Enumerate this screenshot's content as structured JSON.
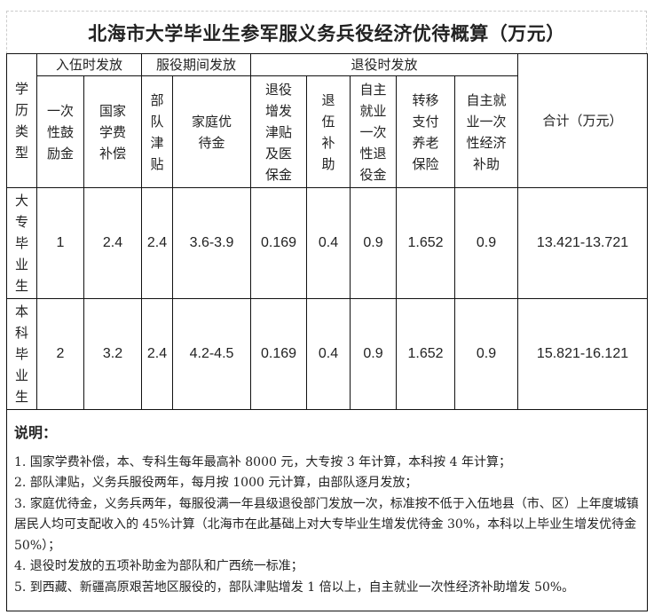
{
  "title": "北海市大学毕业生参军服义务兵役经济优待概算（万元）",
  "header": {
    "row_label": "学历类型",
    "groups": [
      "入伍时发放",
      "服役期间发放",
      "退役时发放"
    ],
    "columns": [
      "一次性鼓励金",
      "国家学费补偿",
      "部队津贴",
      "家庭优待金",
      "退役增发津贴及医保金",
      "退伍补助",
      "自主就业一次性退役金",
      "转移支付养老保险",
      "自主就业一次性经济补助"
    ],
    "total": "合计（万元）"
  },
  "rows": [
    {
      "type": "大专毕业生",
      "values": [
        "1",
        "2.4",
        "2.4",
        "3.6-3.9",
        "0.169",
        "0.4",
        "0.9",
        "1.652",
        "0.9"
      ],
      "total": "13.421-13.721"
    },
    {
      "type": "本科毕业生",
      "values": [
        "2",
        "3.2",
        "2.4",
        "4.2-4.5",
        "0.169",
        "0.4",
        "0.9",
        "1.652",
        "0.9"
      ],
      "total": "15.821-16.121"
    }
  ],
  "notes": {
    "heading": "说明：",
    "items": [
      "1. 国家学费补偿，本、专科生每年最高补 8000 元，大专按 3 年计算，本科按 4 年计算；",
      "2. 部队津贴，义务兵服役两年，每月按 1000 元计算，由部队逐月发放；",
      "3. 家庭优待金，义务兵两年，每服役满一年县级退役部门发放一次，标准按不低于入伍地县（市、区）上年度城镇居民人均可支配收入的 45%计算（北海市在此基础上对大专毕业生增发优待金 30%，本科以上毕业生增发优待金 50%）；",
      "4. 退役时发放的五项补助金为部队和广西统一标准；",
      "5. 到西藏、新疆高原艰苦地区服役的，部队津贴增发 1 倍以上，自主就业一次性经济补助增发 50%。"
    ]
  }
}
